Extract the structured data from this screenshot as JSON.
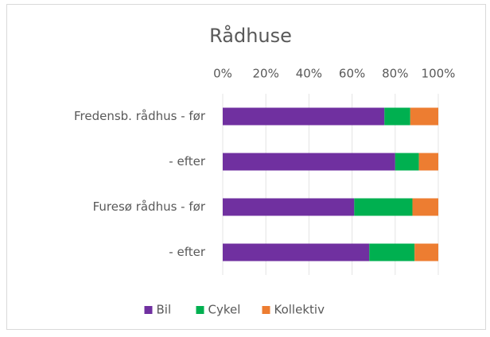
{
  "chart_data": {
    "type": "bar",
    "orientation": "horizontal",
    "stacked": true,
    "title": "Rådhuse",
    "categories": [
      "Fredensb. rådhus - før",
      "- efter",
      "Furesø rådhus - før",
      "- efter"
    ],
    "series": [
      {
        "name": "Bil",
        "color": "#7030a0",
        "values": [
          75,
          80,
          61,
          68
        ]
      },
      {
        "name": "Cykel",
        "color": "#00b050",
        "values": [
          12,
          11,
          27,
          21
        ]
      },
      {
        "name": "Kollektiv",
        "color": "#ed7d31",
        "values": [
          13,
          9,
          12,
          11
        ]
      }
    ],
    "xlim": [
      0,
      100
    ],
    "xticks": [
      {
        "value": 0,
        "label": "0%"
      },
      {
        "value": 20,
        "label": "20%"
      },
      {
        "value": 40,
        "label": "40%"
      },
      {
        "value": 60,
        "label": "60%"
      },
      {
        "value": 80,
        "label": "80%"
      },
      {
        "value": 100,
        "label": "100%"
      }
    ],
    "grid": true,
    "legend": "bottom"
  }
}
